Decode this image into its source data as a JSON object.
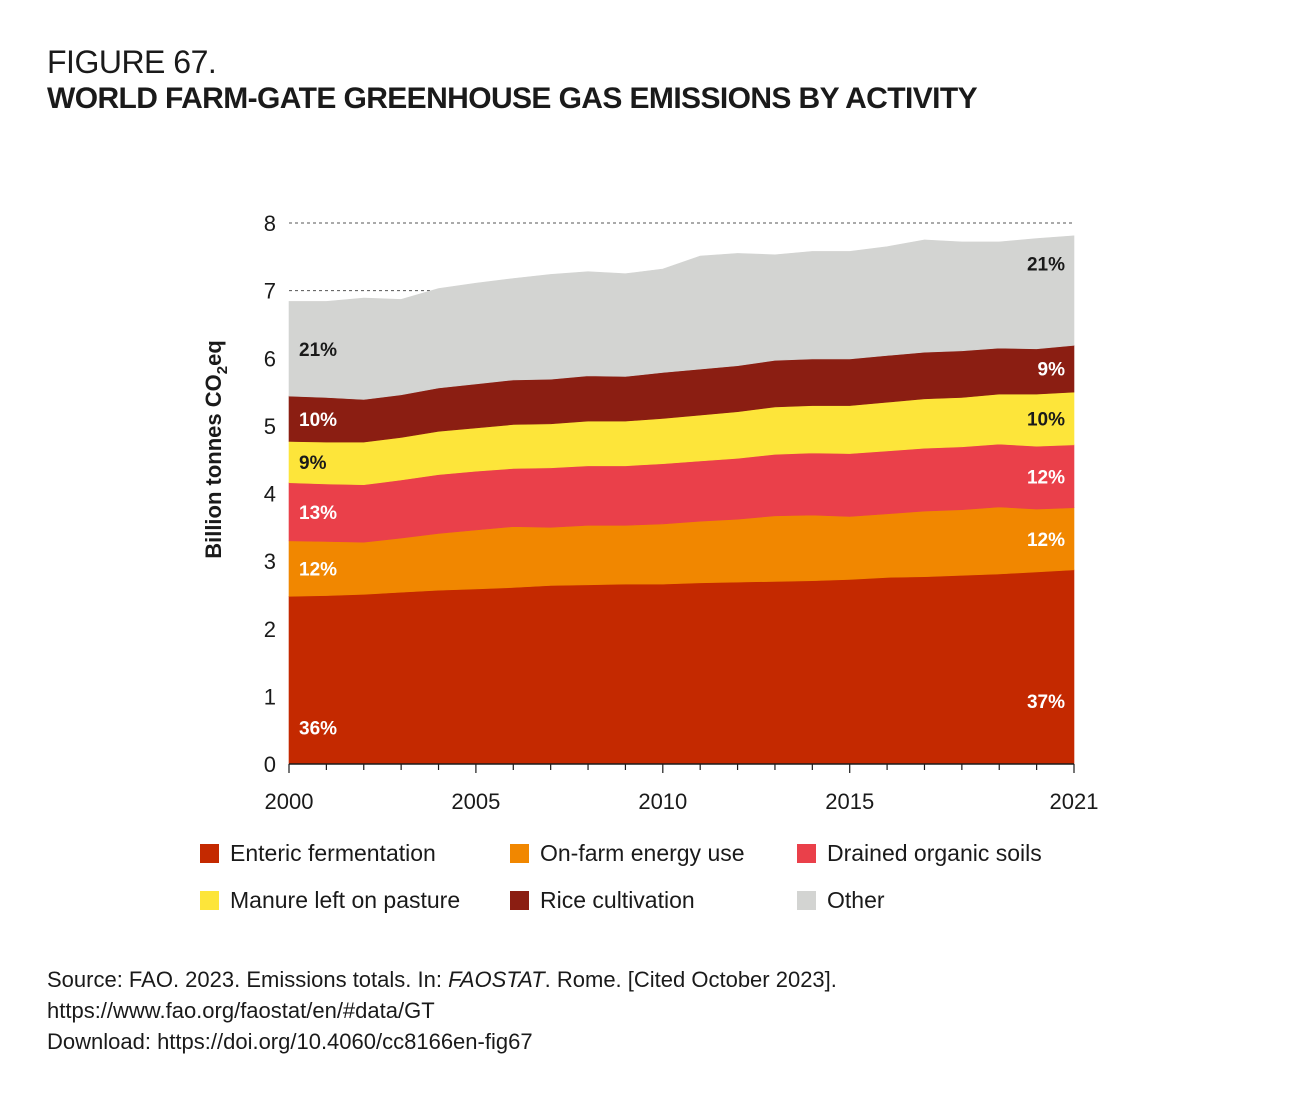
{
  "figure": {
    "label": "FIGURE 67.",
    "title": "WORLD FARM-GATE GREENHOUSE GAS EMISSIONS BY ACTIVITY"
  },
  "chart_data": {
    "type": "area",
    "stacked": true,
    "ylabel": "Billion tonnes CO2eq",
    "ylabel_parts": {
      "main": "Billion tonnes CO",
      "sub": "2",
      "tail": "eq"
    },
    "ylim": [
      0,
      8
    ],
    "yticks": [
      0,
      1,
      2,
      3,
      4,
      5,
      6,
      7,
      8
    ],
    "xlim": [
      2000,
      2021
    ],
    "xtick_labels": [
      2000,
      2005,
      2010,
      2015,
      2021
    ],
    "grid": "dashed lines at 7 and 8",
    "x": [
      2000,
      2001,
      2002,
      2003,
      2004,
      2005,
      2006,
      2007,
      2008,
      2009,
      2010,
      2011,
      2012,
      2013,
      2014,
      2015,
      2016,
      2017,
      2018,
      2019,
      2020,
      2021
    ],
    "series": [
      {
        "name": "Enteric fermentation",
        "color": "#c42900",
        "values": [
          2.48,
          2.49,
          2.51,
          2.54,
          2.57,
          2.59,
          2.61,
          2.64,
          2.65,
          2.66,
          2.66,
          2.68,
          2.69,
          2.7,
          2.71,
          2.73,
          2.76,
          2.77,
          2.79,
          2.81,
          2.84,
          2.87
        ],
        "start_label": "36%",
        "end_label": "37%"
      },
      {
        "name": "On-farm energy use",
        "color": "#f18700",
        "values": [
          0.82,
          0.8,
          0.77,
          0.8,
          0.84,
          0.87,
          0.9,
          0.86,
          0.88,
          0.87,
          0.89,
          0.91,
          0.93,
          0.97,
          0.97,
          0.93,
          0.94,
          0.97,
          0.97,
          0.99,
          0.93,
          0.92
        ],
        "start_label": "12%",
        "end_label": "12%"
      },
      {
        "name": "Drained organic soils",
        "color": "#ea404a",
        "values": [
          0.86,
          0.85,
          0.85,
          0.86,
          0.87,
          0.87,
          0.86,
          0.88,
          0.88,
          0.88,
          0.89,
          0.89,
          0.9,
          0.91,
          0.92,
          0.93,
          0.93,
          0.93,
          0.93,
          0.93,
          0.93,
          0.93
        ],
        "start_label": "13%",
        "end_label": "12%"
      },
      {
        "name": "Manure left on pasture",
        "color": "#fde53a",
        "values": [
          0.61,
          0.62,
          0.63,
          0.63,
          0.64,
          0.64,
          0.65,
          0.65,
          0.66,
          0.66,
          0.67,
          0.68,
          0.69,
          0.7,
          0.7,
          0.71,
          0.72,
          0.73,
          0.73,
          0.74,
          0.77,
          0.78
        ],
        "start_label": "9%",
        "end_label": "10%"
      },
      {
        "name": "Rice cultivation",
        "color": "#8b1e12",
        "values": [
          0.67,
          0.66,
          0.63,
          0.63,
          0.64,
          0.65,
          0.66,
          0.66,
          0.67,
          0.66,
          0.68,
          0.68,
          0.68,
          0.69,
          0.69,
          0.69,
          0.69,
          0.69,
          0.69,
          0.68,
          0.67,
          0.69
        ],
        "start_label": "10%",
        "end_label": "9%"
      },
      {
        "name": "Other",
        "color": "#d3d4d2",
        "values": [
          1.4,
          1.42,
          1.5,
          1.41,
          1.47,
          1.49,
          1.5,
          1.55,
          1.54,
          1.52,
          1.53,
          1.67,
          1.66,
          1.56,
          1.59,
          1.59,
          1.61,
          1.66,
          1.61,
          1.57,
          1.63,
          1.62
        ],
        "start_label": "21%",
        "end_label": "21%"
      }
    ]
  },
  "source": {
    "prefix": "Source: FAO. 2023. Emissions totals. In: ",
    "italic": "FAOSTAT",
    "suffix": ". Rome. [Cited October 2023].",
    "url": "https://www.fao.org/faostat/en/#data/GT",
    "download": "Download: https://doi.org/10.4060/cc8166en-fig67"
  }
}
